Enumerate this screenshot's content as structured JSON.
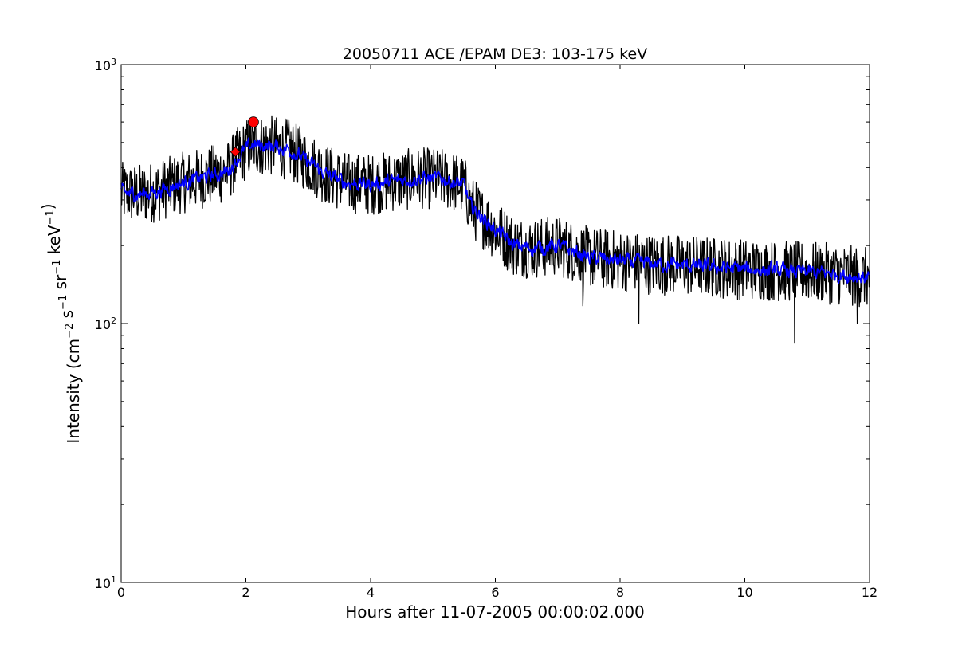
{
  "chart_data": {
    "type": "line",
    "title": "20050711 ACE /EPAM DE3: 103-175 keV",
    "xlabel": "Hours after 11-07-2005 00:00:02.000",
    "ylabel": {
      "prefix": "Intensity (cm",
      "parts": [
        {
          "base": "cm",
          "exp": "−2"
        },
        {
          "base": "s",
          "exp": "−1"
        },
        {
          "base": "sr",
          "exp": "−1"
        },
        {
          "base": "keV",
          "exp": "−1"
        }
      ],
      "suffix": ")"
    },
    "xlim": [
      0,
      12
    ],
    "ylim": [
      10,
      1000
    ],
    "yscale": "log",
    "xticks": [
      0,
      2,
      4,
      6,
      8,
      10,
      12
    ],
    "xtick_labels": [
      "0",
      "2",
      "4",
      "6",
      "8",
      "10",
      "12"
    ],
    "yticks": [
      {
        "value": 10,
        "base": "10",
        "exp": "1"
      },
      {
        "value": 100,
        "base": "10",
        "exp": "2"
      },
      {
        "value": 1000,
        "base": "10",
        "exp": "3"
      }
    ],
    "grid": false,
    "series": [
      {
        "kind": "raw",
        "color": "#000000",
        "anchors": [
          [
            0.0,
            320
          ],
          [
            0.3,
            315
          ],
          [
            0.6,
            325
          ],
          [
            0.9,
            345
          ],
          [
            1.2,
            360
          ],
          [
            1.5,
            375
          ],
          [
            1.7,
            385
          ],
          [
            1.85,
            430
          ],
          [
            2.0,
            470
          ],
          [
            2.1,
            490
          ],
          [
            2.4,
            485
          ],
          [
            2.7,
            470
          ],
          [
            3.0,
            420
          ],
          [
            3.3,
            375
          ],
          [
            3.6,
            350
          ],
          [
            4.0,
            345
          ],
          [
            4.4,
            355
          ],
          [
            4.8,
            365
          ],
          [
            5.2,
            360
          ],
          [
            5.5,
            340
          ],
          [
            5.6,
            285
          ],
          [
            5.8,
            255
          ],
          [
            6.0,
            230
          ],
          [
            6.3,
            200
          ],
          [
            6.6,
            195
          ],
          [
            7.0,
            200
          ],
          [
            7.5,
            180
          ],
          [
            8.0,
            175
          ],
          [
            8.5,
            170
          ],
          [
            9.0,
            168
          ],
          [
            9.5,
            165
          ],
          [
            10.0,
            162
          ],
          [
            10.5,
            160
          ],
          [
            11.0,
            158
          ],
          [
            11.5,
            155
          ],
          [
            12.0,
            150
          ]
        ],
        "noise_amplitude_log10": 0.085,
        "point_spacing_hours": 0.0083,
        "min_spikes": [
          [
            8.3,
            100
          ],
          [
            10.8,
            84
          ],
          [
            11.8,
            100
          ],
          [
            7.4,
            117
          ]
        ]
      },
      {
        "kind": "smoothed",
        "color": "#0000ff",
        "anchors": [
          [
            0.0,
            320
          ],
          [
            0.3,
            315
          ],
          [
            0.6,
            325
          ],
          [
            0.9,
            345
          ],
          [
            1.2,
            360
          ],
          [
            1.5,
            375
          ],
          [
            1.7,
            385
          ],
          [
            1.85,
            430
          ],
          [
            2.0,
            470
          ],
          [
            2.1,
            490
          ],
          [
            2.4,
            485
          ],
          [
            2.7,
            470
          ],
          [
            3.0,
            420
          ],
          [
            3.3,
            375
          ],
          [
            3.6,
            350
          ],
          [
            4.0,
            345
          ],
          [
            4.4,
            355
          ],
          [
            4.8,
            365
          ],
          [
            5.2,
            360
          ],
          [
            5.5,
            340
          ],
          [
            5.6,
            285
          ],
          [
            5.8,
            255
          ],
          [
            6.0,
            230
          ],
          [
            6.3,
            200
          ],
          [
            6.6,
            195
          ],
          [
            7.0,
            200
          ],
          [
            7.5,
            180
          ],
          [
            8.0,
            175
          ],
          [
            8.5,
            170
          ],
          [
            9.0,
            168
          ],
          [
            9.5,
            165
          ],
          [
            10.0,
            162
          ],
          [
            10.5,
            160
          ],
          [
            11.0,
            158
          ],
          [
            11.5,
            155
          ],
          [
            12.0,
            150
          ]
        ],
        "noise_amplitude_log10": 0.03
      }
    ],
    "markers": [
      {
        "shape": "diamond",
        "x": 1.83,
        "y": 460,
        "color": "#ff0000"
      },
      {
        "shape": "circle",
        "x": 2.12,
        "y": 600,
        "color": "#ff0000"
      }
    ]
  }
}
